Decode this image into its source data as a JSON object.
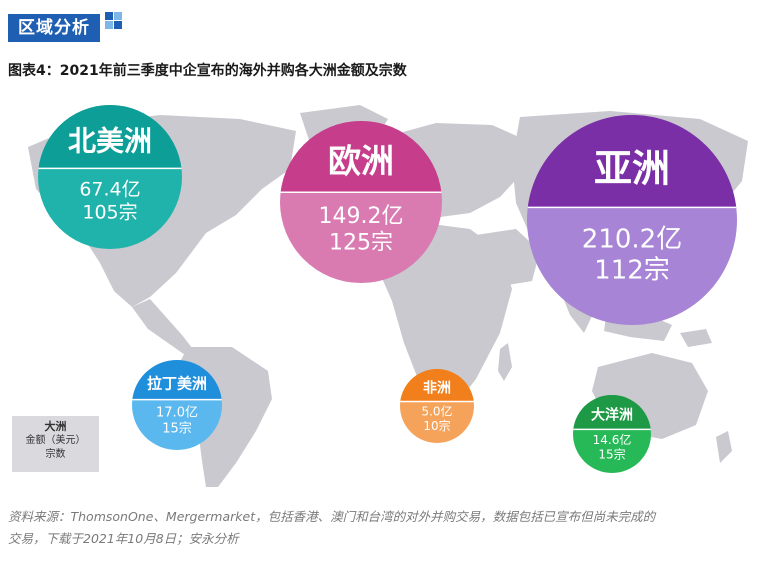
{
  "header": {
    "badge": "区域分析"
  },
  "figure": {
    "title": "图表4：2021年前三季度中企宣布的海外并购各大洲金额及宗数"
  },
  "legend": {
    "title": "大洲",
    "line1": "金额（美元）",
    "line2": "宗数"
  },
  "source": {
    "line1": "资料来源：ThomsonOne、Mergermarket，包括香港、澳门和台湾的对外并购交易，数据包括已宣布但尚未完成的",
    "line2": "交易，下载于2021年10月8日；安永分析"
  },
  "chart_data": {
    "type": "bubble-map",
    "regions": [
      {
        "name": "北美洲",
        "amount_label": "67.4亿",
        "amount": 67.4,
        "deals_label": "105宗",
        "deals": 105,
        "color": "#0e9e98",
        "color_light": "#1fb3ac"
      },
      {
        "name": "欧洲",
        "amount_label": "149.2亿",
        "amount": 149.2,
        "deals_label": "125宗",
        "deals": 125,
        "color": "#c53d8b",
        "color_light": "#d97bb1"
      },
      {
        "name": "亚洲",
        "amount_label": "210.2亿",
        "amount": 210.2,
        "deals_label": "112宗",
        "deals": 112,
        "color": "#7b2fa6",
        "color_light": "#a784d6"
      },
      {
        "name": "拉丁美洲",
        "amount_label": "17.0亿",
        "amount": 17.0,
        "deals_label": "15宗",
        "deals": 15,
        "color": "#1f8fdc",
        "color_light": "#5ab8ee"
      },
      {
        "name": "非洲",
        "amount_label": "5.0亿",
        "amount": 5.0,
        "deals_label": "10宗",
        "deals": 10,
        "color": "#f07f1c",
        "color_light": "#f5a35a"
      },
      {
        "name": "大洋洲",
        "amount_label": "14.6亿",
        "amount": 14.6,
        "deals_label": "15宗",
        "deals": 15,
        "color": "#1e9a46",
        "color_light": "#27b957"
      }
    ]
  }
}
